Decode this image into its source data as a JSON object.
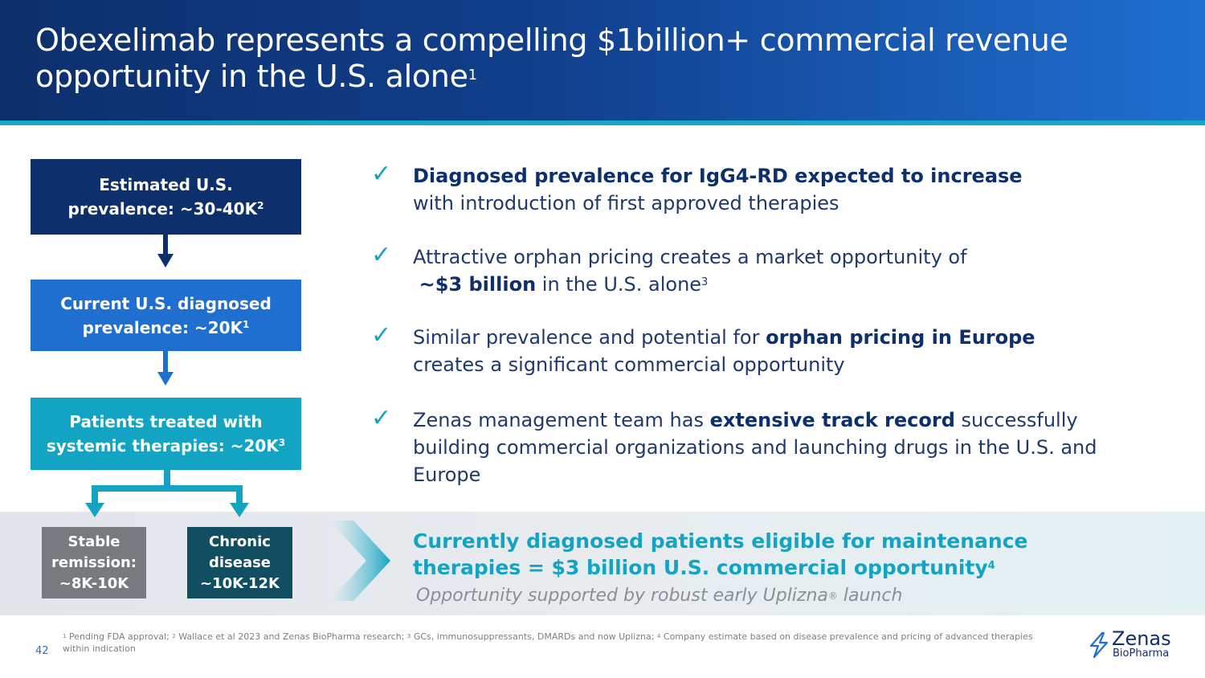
{
  "slide": {
    "title": "Obexelimab represents a compelling $1billion+ commercial revenue opportunity in the U.S. alone",
    "title_sup": "1",
    "page_number": "42"
  },
  "funnel": {
    "box1_line1": "Estimated U.S.",
    "box1_line2": "prevalence: ~30-40K",
    "box1_sup": "2",
    "box2_line1": "Current U.S. diagnosed",
    "box2_line2": "prevalence: ~20K",
    "box2_sup": "1",
    "box3_line1": "Patients treated with",
    "box3_line2": "systemic therapies: ~20K",
    "box3_sup": "3",
    "stable_line1": "Stable",
    "stable_line2": "remission:",
    "stable_line3": "~8K-10K",
    "chronic_line1": "Chronic",
    "chronic_line2": "disease",
    "chronic_line3": "~10K-12K"
  },
  "bullets": {
    "b1_bold": "Diagnosed prevalence for IgG4-RD expected to increase",
    "b1_rest": "with introduction of first approved therapies",
    "b2_pre": "Attractive orphan pricing creates a market opportunity of",
    "b2_bold": "~$3 billion",
    "b2_post": " in the U.S. alone",
    "b2_sup": "3",
    "b3_pre": "Similar prevalence and potential for ",
    "b3_bold": "orphan pricing in Europe",
    "b3_post": "creates a significant commercial opportunity",
    "b4_pre": "Zenas management team has ",
    "b4_bold": "extensive track record",
    "b4_post": " successfully building commercial organizations and launching drugs in the U.S. and Europe",
    "check": "✓"
  },
  "callout": {
    "headline_line1": "Currently diagnosed patients eligible for maintenance",
    "headline_line2": "therapies = $3 billion U.S. commercial opportunity",
    "headline_sup": "4",
    "sub_pre": "Opportunity supported by robust early Uplizna",
    "sub_reg": "®",
    "sub_post": " launch"
  },
  "footnote": {
    "s1": "1",
    "t1": " Pending FDA approval; ",
    "s2": "2",
    "t2": " Wallace et al 2023 and Zenas BioPharma research; ",
    "s3": "3",
    "t3": " GCs, immunosuppressants, DMARDs and now Uplizna; ",
    "s4": "4",
    "t4": " Company estimate based on disease prevalence and pricing of advanced therapies within indication"
  },
  "logo": {
    "name": "Zenas",
    "sub": "BioPharma"
  },
  "colors": {
    "navy": "#0d2f6b",
    "blue": "#1f6fd1",
    "teal": "#13a4c4",
    "dark_teal": "#124e61",
    "gray": "#777b80"
  }
}
